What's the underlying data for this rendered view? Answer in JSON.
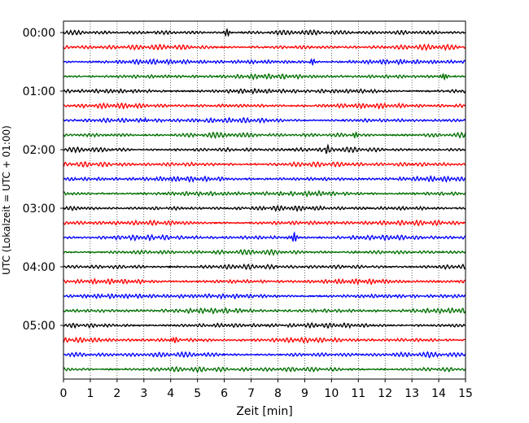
{
  "chart_data": {
    "type": "line",
    "title": "",
    "xlabel": "Zeit  [min]",
    "ylabel": "UTC (Lokalzeit = UTC + 01:00)",
    "xlim": [
      0,
      15
    ],
    "xticks": [
      0,
      1,
      2,
      3,
      4,
      5,
      6,
      7,
      8,
      9,
      10,
      11,
      12,
      13,
      14,
      15
    ],
    "ytick_labels": [
      "00:00",
      "01:00",
      "02:00",
      "03:00",
      "04:00",
      "05:00"
    ],
    "trace_interval_min": 15,
    "trace_count": 24,
    "trace_colors": [
      "#000000",
      "#ff0000",
      "#0000ff",
      "#007000"
    ],
    "grid": "vertical dotted",
    "events": [
      {
        "trace": 0,
        "x": 6.1,
        "amp": 1.8
      },
      {
        "trace": 2,
        "x": 9.3,
        "amp": 1.6
      },
      {
        "trace": 3,
        "x": 14.2,
        "amp": 1.7
      },
      {
        "trace": 6,
        "x": 3.0,
        "amp": 1.2
      },
      {
        "trace": 7,
        "x": 10.9,
        "amp": 1.3
      },
      {
        "trace": 8,
        "x": 9.8,
        "amp": 1.4
      },
      {
        "trace": 14,
        "x": 8.6,
        "amp": 2.4
      },
      {
        "trace": 21,
        "x": 4.1,
        "amp": 1.5
      }
    ]
  }
}
